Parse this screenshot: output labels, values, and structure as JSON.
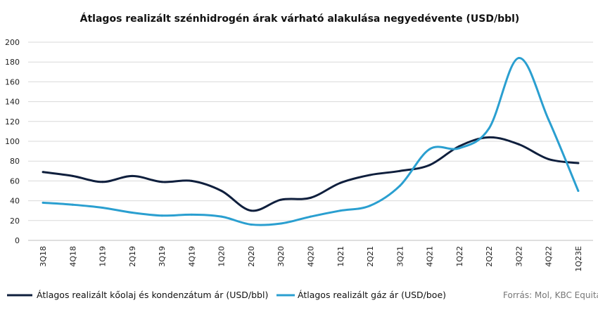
{
  "chart_data": {
    "type": "line",
    "title": "Átlagos realizált szénhidrogén árak várható alakulása negyedévente  (USD/bbl)",
    "categories": [
      "3Q18",
      "4Q18",
      "1Q19",
      "2Q19",
      "3Q19",
      "4Q19",
      "1Q20",
      "2Q20",
      "3Q20",
      "4Q20",
      "1Q21",
      "2Q21",
      "3Q21",
      "4Q21",
      "1Q22",
      "2Q22",
      "3Q22",
      "4Q22",
      "1Q23E"
    ],
    "ylim": [
      0,
      200
    ],
    "yticks": [
      0,
      20,
      40,
      60,
      80,
      100,
      120,
      140,
      160,
      180,
      200
    ],
    "grid": true,
    "legend_position": "bottom",
    "source": "Forrás: Mol, KBC Equitas",
    "series": [
      {
        "name": "Átlagos realizált kőolaj és kondenzátum ár (USD/bbl)",
        "color": "#0f1f3d",
        "values": [
          69,
          65,
          59,
          65,
          59,
          60,
          50,
          30,
          41,
          43,
          58,
          66,
          70,
          76,
          95,
          104,
          97,
          82,
          78
        ]
      },
      {
        "name": "Átlagos realizált gáz ár (USD/boe)",
        "color": "#2a9fd0",
        "values": [
          38,
          36,
          33,
          28,
          25,
          26,
          24,
          16,
          17,
          24,
          30,
          35,
          55,
          92,
          93,
          113,
          184,
          122,
          50
        ]
      }
    ]
  }
}
